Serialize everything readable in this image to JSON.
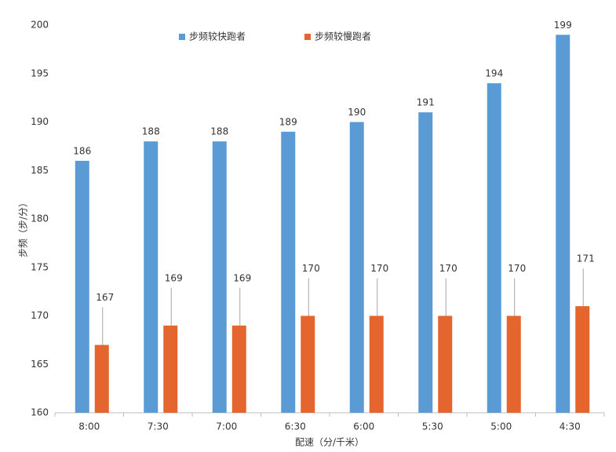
{
  "chart_data": {
    "type": "bar",
    "x_label": "配速（分/千米）",
    "y_label": "步频（步/分）",
    "categories": [
      "8:00",
      "7:30",
      "7:00",
      "6:30",
      "6:00",
      "5:30",
      "5:00",
      "4:30"
    ],
    "series": [
      {
        "name": "步频较快跑者",
        "color": "#5b9bd5",
        "values": [
          186,
          188,
          188,
          189,
          190,
          191,
          194,
          199
        ]
      },
      {
        "name": "步频较慢跑者",
        "color": "#e4652d",
        "values": [
          167,
          169,
          169,
          170,
          170,
          170,
          170,
          171
        ]
      }
    ],
    "ylim": [
      160,
      200
    ],
    "yticks": [
      160,
      165,
      170,
      175,
      180,
      185,
      190,
      195,
      200
    ],
    "legend": "top"
  }
}
